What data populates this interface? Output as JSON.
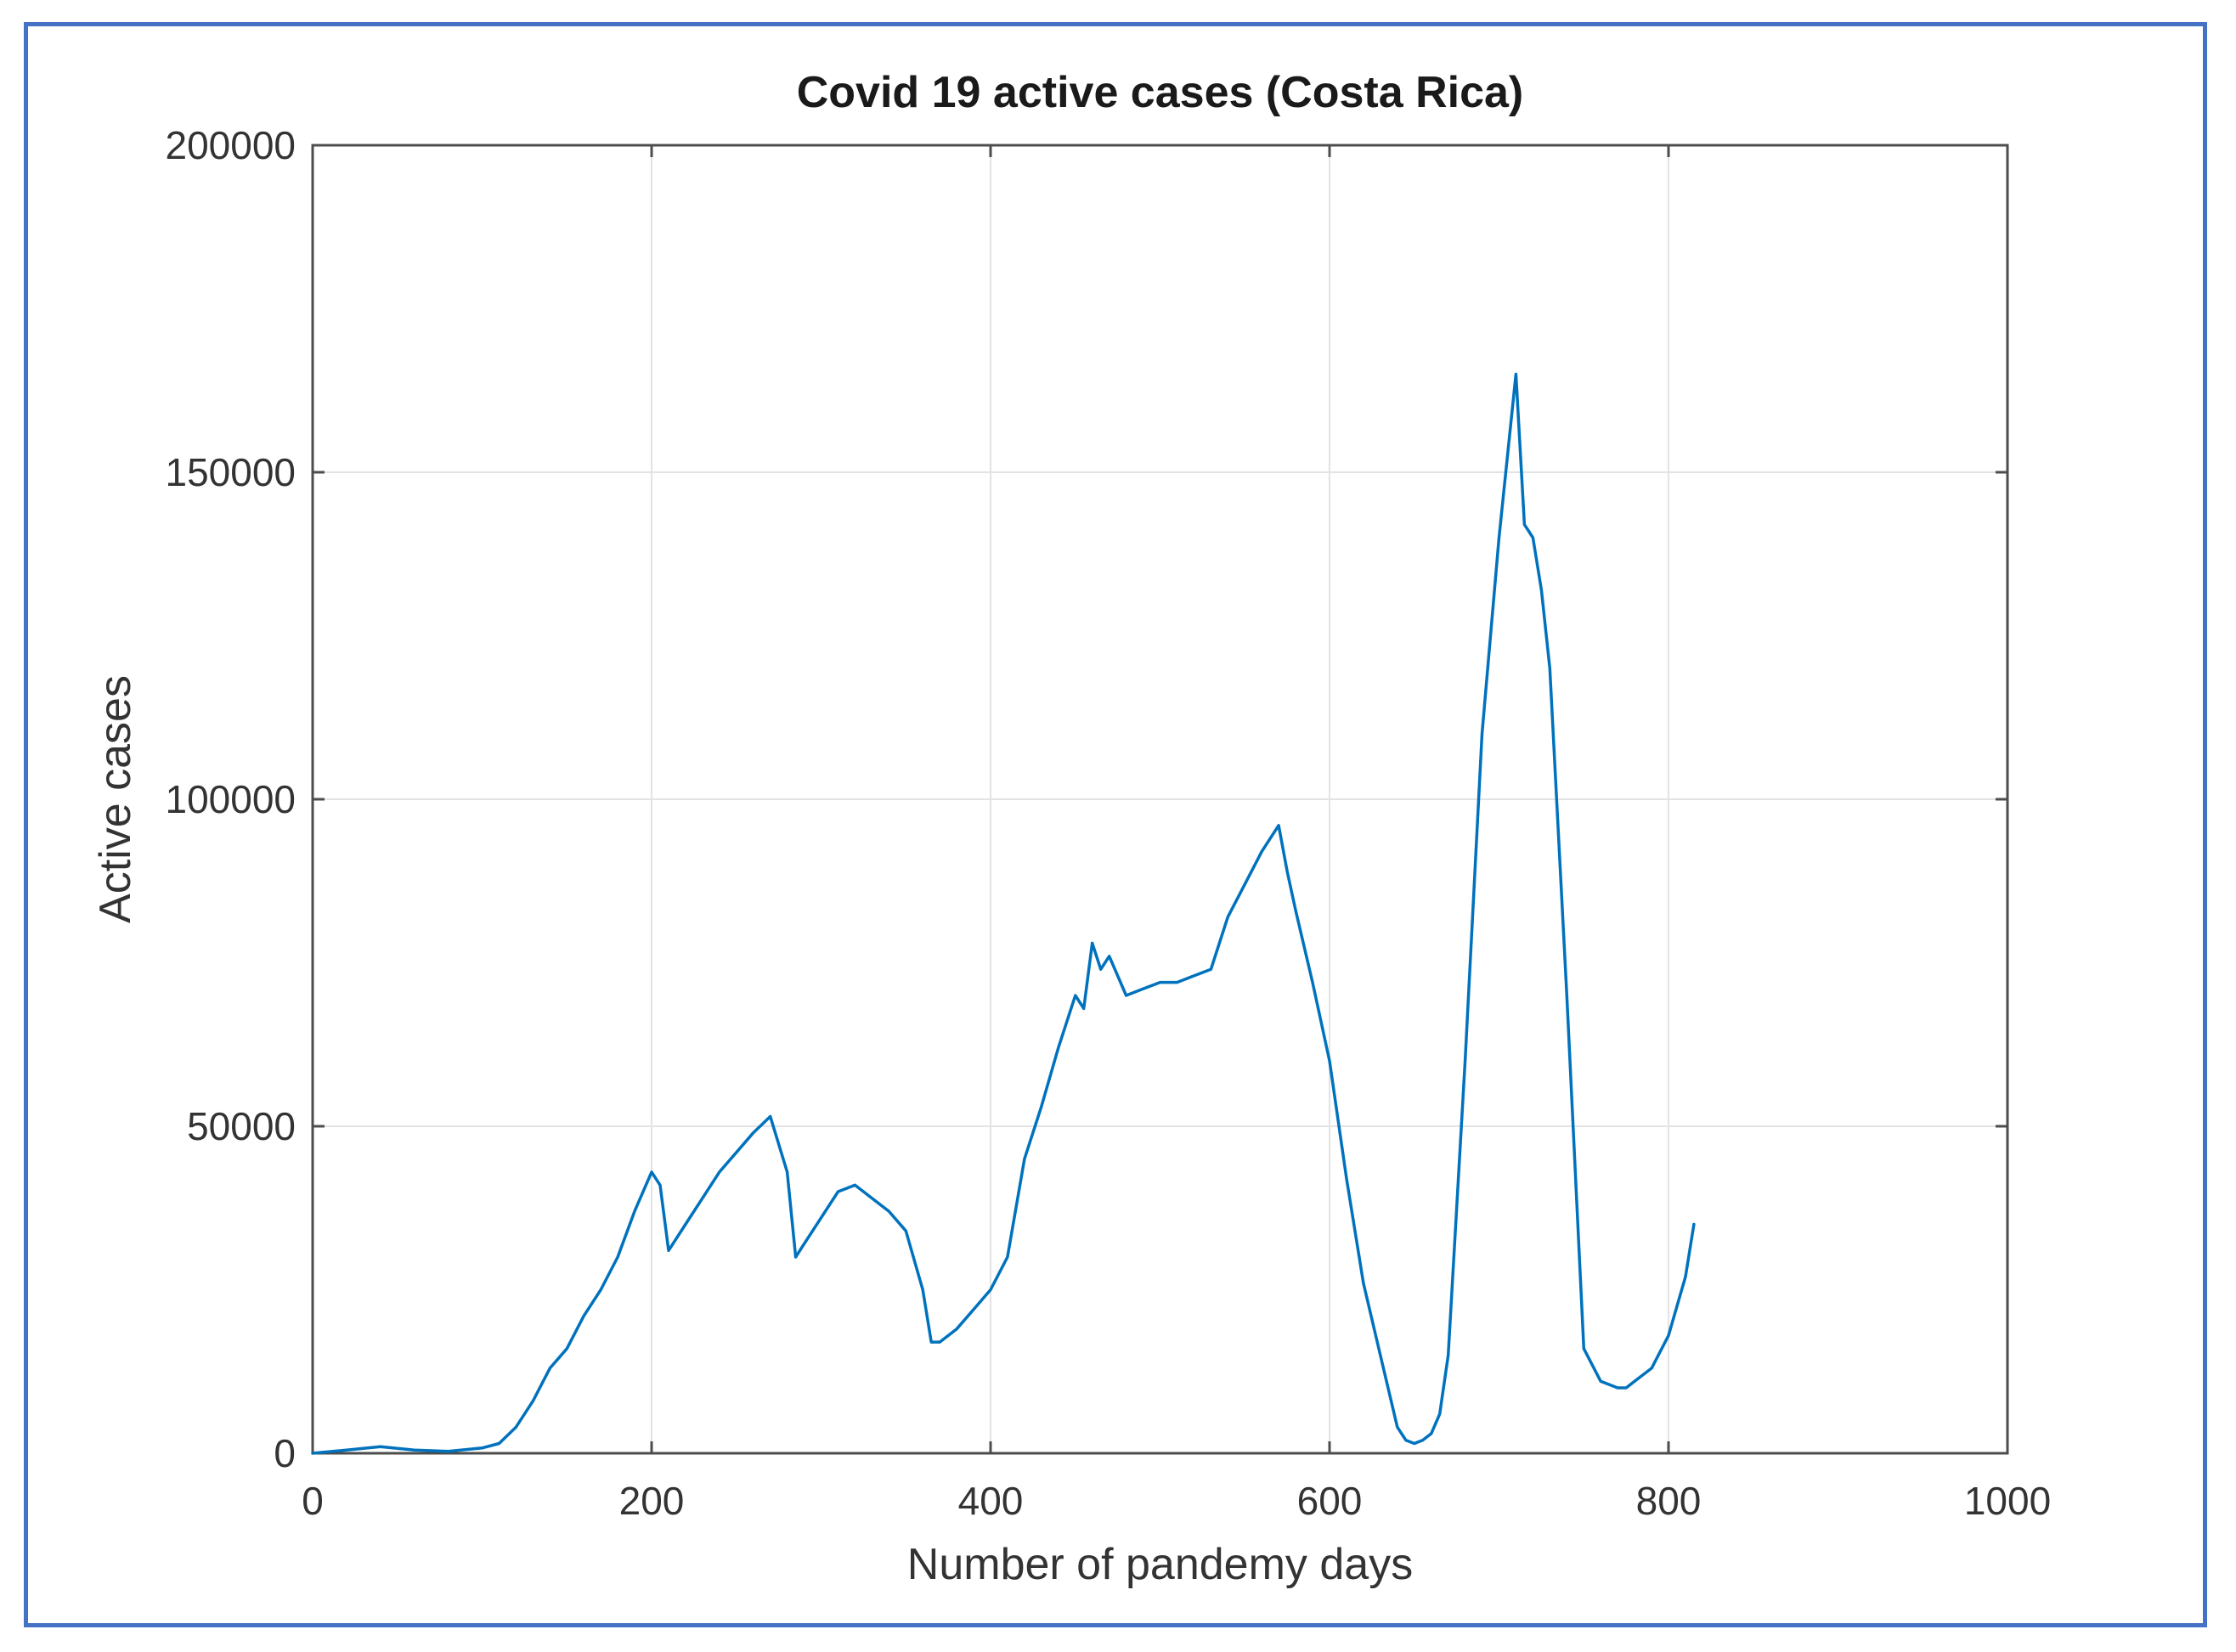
{
  "chart_data": {
    "type": "line",
    "title": "Covid 19 active cases (Costa Rica)",
    "xlabel": "Number of pandemy days",
    "ylabel": "Active cases",
    "xlim": [
      0,
      1000
    ],
    "ylim": [
      0,
      200000
    ],
    "xticks": [
      0,
      200,
      400,
      600,
      800,
      1000
    ],
    "yticks": [
      0,
      50000,
      100000,
      150000,
      200000
    ],
    "xtick_labels": [
      "0",
      "200",
      "400",
      "600",
      "800",
      "1000"
    ],
    "ytick_labels": [
      "0",
      "50000",
      "100000",
      "150000",
      "200000"
    ],
    "grid": true,
    "series_color": "#0072bd",
    "series": [
      {
        "x": [
          0,
          20,
          40,
          60,
          80,
          100,
          110,
          120,
          130,
          140,
          150,
          160,
          170,
          180,
          190,
          200,
          205,
          210,
          220,
          230,
          240,
          250,
          260,
          270,
          280,
          285,
          290,
          300,
          310,
          320,
          330,
          340,
          350,
          360,
          365,
          370,
          380,
          390,
          400,
          410,
          420,
          430,
          440,
          450,
          455,
          460,
          465,
          470,
          480,
          490,
          500,
          510,
          520,
          530,
          540,
          550,
          560,
          570,
          575,
          580,
          590,
          600,
          610,
          620,
          630,
          640,
          645,
          650,
          655,
          660,
          665,
          670,
          680,
          690,
          700,
          710,
          715,
          720,
          725,
          730,
          740,
          750,
          760,
          770,
          775,
          780,
          790,
          800,
          810,
          815
        ],
        "y": [
          0,
          500,
          1000,
          500,
          300,
          800,
          1500,
          4000,
          8000,
          13000,
          16000,
          21000,
          25000,
          30000,
          37000,
          43000,
          41000,
          31000,
          35000,
          39000,
          43000,
          46000,
          49000,
          51500,
          43000,
          30000,
          32000,
          36000,
          40000,
          41000,
          39000,
          37000,
          34000,
          25000,
          17000,
          17000,
          19000,
          22000,
          25000,
          30000,
          45000,
          53000,
          62000,
          70000,
          68000,
          78000,
          74000,
          76000,
          70000,
          71000,
          72000,
          72000,
          73000,
          74000,
          82000,
          87000,
          92000,
          96000,
          89000,
          83000,
          72000,
          60000,
          42000,
          26000,
          15000,
          4000,
          2000,
          1500,
          2000,
          3000,
          6000,
          15000,
          60000,
          110000,
          140000,
          165000,
          142000,
          140000,
          132000,
          120000,
          70000,
          16000,
          11000,
          10000,
          10000,
          11000,
          13000,
          18000,
          27000,
          35000
        ]
      }
    ]
  }
}
